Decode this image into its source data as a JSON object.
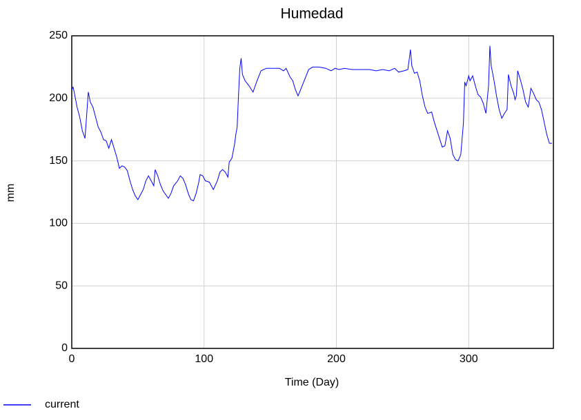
{
  "chart_data": {
    "type": "line",
    "title": "Humedad",
    "x_label": "Time (Day)",
    "y_label": "mm",
    "x": [
      0,
      1,
      2,
      4,
      6,
      8,
      10,
      12.5,
      14,
      16,
      18,
      20,
      22,
      24,
      26,
      28,
      30,
      32,
      34,
      36,
      38,
      40,
      42,
      44,
      46,
      48,
      50,
      52,
      54,
      56,
      58,
      60,
      62,
      63,
      65,
      67,
      69,
      71,
      73,
      75,
      77,
      80,
      82,
      84,
      86,
      88,
      90,
      92,
      94,
      96,
      97,
      99,
      101,
      104,
      107,
      110,
      112,
      114,
      116,
      118,
      119,
      121,
      123,
      124,
      125,
      126,
      127,
      128,
      129,
      131,
      134,
      137,
      140,
      143,
      147,
      152,
      157,
      160,
      162,
      165,
      167,
      169,
      171,
      173,
      176,
      179,
      182,
      187,
      192,
      196,
      199,
      202,
      206,
      212,
      218,
      225,
      230,
      235,
      240,
      244,
      247,
      251,
      254,
      256,
      257,
      259,
      261,
      263,
      265,
      267,
      269,
      272,
      274,
      277,
      280,
      282,
      284,
      286,
      288,
      290,
      292,
      294,
      296,
      297,
      298,
      300,
      301,
      303,
      305,
      307,
      309,
      311,
      313,
      315,
      316,
      317,
      319,
      321,
      323,
      325,
      327,
      329,
      330,
      332,
      334,
      335,
      336,
      337,
      339,
      341,
      343,
      345,
      347,
      349,
      351,
      353,
      355,
      357,
      359,
      361,
      363
    ],
    "series": [
      {
        "name": "current",
        "color": "#0000ff",
        "values": [
          207,
          209,
          204,
          193,
          185,
          174,
          168,
          205,
          197,
          193,
          185,
          177,
          173,
          167,
          166,
          160,
          167,
          160,
          153,
          144,
          146,
          145,
          142,
          134,
          127,
          122,
          119,
          123,
          127,
          134,
          138,
          134,
          130,
          143,
          138,
          131,
          126,
          123,
          120,
          124,
          130,
          134,
          138,
          136,
          131,
          124,
          119,
          118,
          124,
          133,
          139,
          138,
          134,
          133,
          127,
          134,
          141,
          143,
          141,
          137,
          149,
          152,
          163,
          171,
          177,
          202,
          224,
          232,
          219,
          214,
          210,
          205,
          214,
          222,
          224,
          224,
          224,
          222,
          224,
          217,
          214,
          207,
          202,
          207,
          215,
          223,
          225,
          225,
          224,
          222,
          224,
          223,
          224,
          223,
          223,
          223,
          222,
          223,
          222,
          224,
          221,
          222,
          223,
          239,
          226,
          220,
          221,
          214,
          202,
          193,
          188,
          189,
          181,
          171,
          161,
          162,
          174,
          168,
          155,
          151,
          150,
          155,
          180,
          213,
          210,
          218,
          214,
          218,
          210,
          203,
          201,
          196,
          188,
          210,
          242,
          226,
          215,
          202,
          191,
          184,
          188,
          191,
          219,
          210,
          204,
          199,
          202,
          222,
          215,
          207,
          197,
          193,
          208,
          204,
          199,
          197,
          191,
          181,
          171,
          164,
          164
        ]
      }
    ],
    "xlim": [
      0,
      364
    ],
    "ylim": [
      0,
      250
    ],
    "xticks": [
      0,
      100,
      200,
      300
    ],
    "yticks": [
      0,
      50,
      100,
      150,
      200,
      250
    ],
    "grid": true
  }
}
